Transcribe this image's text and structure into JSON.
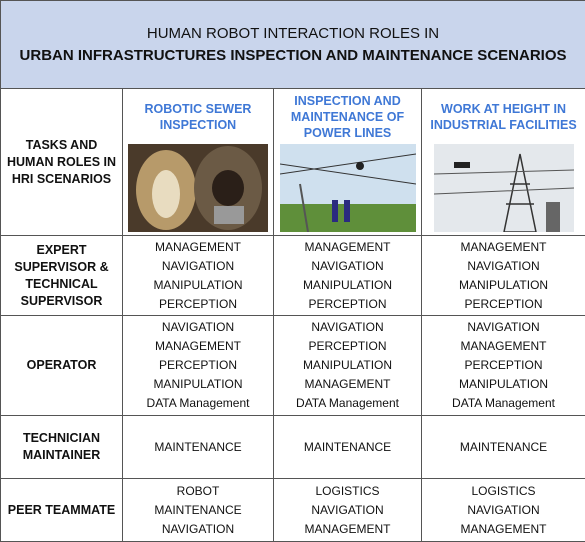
{
  "title": {
    "line1": "HUMAN ROBOT INTERACTION ROLES IN",
    "line2": "URBAN INFRASTRUCTURES INSPECTION AND MAINTENANCE SCENARIOS"
  },
  "corner_header": "TASKS AND HUMAN ROLES IN HRI SCENARIOS",
  "columns": [
    "ROBOTIC SEWER INSPECTION",
    "INSPECTION AND MAINTENANCE OF POWER LINES",
    "WORK AT HEIGHT IN INDUSTRIAL FACILITIES"
  ],
  "rows": [
    {
      "role": "EXPERT SUPERVISOR & TECHNICAL SUPERVISOR",
      "cells": [
        [
          "MANAGEMENT",
          "NAVIGATION",
          "MANIPULATION",
          "PERCEPTION"
        ],
        [
          "MANAGEMENT",
          "NAVIGATION",
          "MANIPULATION",
          "PERCEPTION"
        ],
        [
          "MANAGEMENT",
          "NAVIGATION",
          "MANIPULATION",
          "PERCEPTION"
        ]
      ]
    },
    {
      "role": "OPERATOR",
      "cells": [
        [
          "NAVIGATION",
          "MANAGEMENT",
          "PERCEPTION",
          "MANIPULATION",
          "DATA Management"
        ],
        [
          "NAVIGATION",
          "PERCEPTION",
          "MANIPULATION",
          "MANAGEMENT",
          "DATA Management"
        ],
        [
          "NAVIGATION",
          "MANAGEMENT",
          "PERCEPTION",
          "MANIPULATION",
          "DATA Management"
        ]
      ]
    },
    {
      "role": "TECHNICIAN MAINTAINER",
      "cells": [
        [
          "MAINTENANCE"
        ],
        [
          "MAINTENANCE"
        ],
        [
          "MAINTENANCE"
        ]
      ]
    },
    {
      "role": "PEER TEAMMATE",
      "cells": [
        [
          "ROBOT",
          "MAINTENANCE",
          "NAVIGATION"
        ],
        [
          "LOGISTICS",
          "NAVIGATION",
          "MANAGEMENT"
        ],
        [
          "LOGISTICS",
          "NAVIGATION",
          "MANAGEMENT"
        ]
      ]
    }
  ]
}
